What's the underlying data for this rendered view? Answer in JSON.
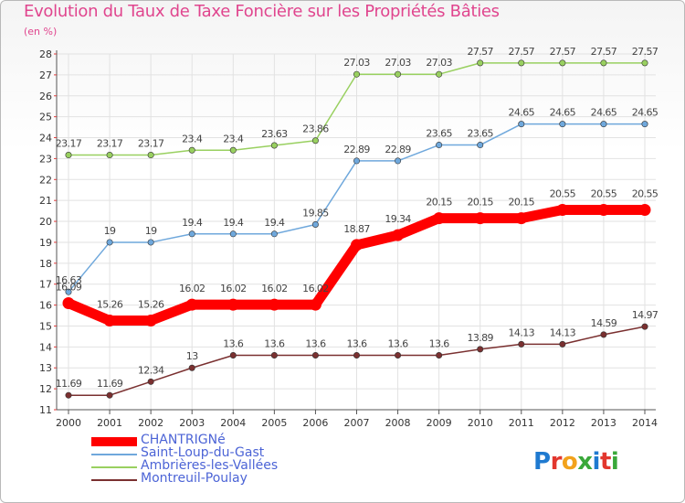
{
  "header": {
    "title": "Evolution du Taux de Taxe Foncière sur les Propriétés Bâties",
    "subtitle": "(en %)"
  },
  "logo": {
    "text": "Proxiti",
    "colors": [
      "#1f7ad0",
      "#e2372e",
      "#f2a21c",
      "#3aa83a",
      "#1f7ad0",
      "#e2372e",
      "#3aa83a"
    ]
  },
  "chart_data": {
    "type": "line",
    "title": "Evolution du Taux de Taxe Foncière sur les Propriétés Bâties",
    "ylabel": "(en %)",
    "xlabel": "",
    "x": [
      "2000",
      "2001",
      "2002",
      "2003",
      "2004",
      "2005",
      "2006",
      "2007",
      "2008",
      "2009",
      "2010",
      "2011",
      "2012",
      "2013",
      "2014"
    ],
    "ylim": [
      11,
      28
    ],
    "yticks": [
      11,
      12,
      13,
      14,
      15,
      16,
      17,
      18,
      19,
      20,
      21,
      22,
      23,
      24,
      25,
      26,
      27,
      28
    ],
    "grid": true,
    "legend_position": "bottom-left",
    "series": [
      {
        "name": "CHANTRIGNé",
        "color": "#ff0000",
        "values": [
          16.09,
          15.26,
          15.26,
          16.02,
          16.02,
          16.02,
          16.02,
          18.87,
          19.34,
          20.15,
          20.15,
          20.15,
          20.55,
          20.55,
          20.55
        ],
        "labels": [
          "16.09",
          "15.26",
          "15.26",
          "16.02",
          "16.02",
          "16.02",
          "16.02",
          "18.87",
          "19.34",
          "20.15",
          "20.15",
          "20.15",
          "20.55",
          "20.55",
          "20.55"
        ]
      },
      {
        "name": "Saint-Loup-du-Gast",
        "color": "#6fa8dc",
        "values": [
          16.63,
          19,
          19,
          19.4,
          19.4,
          19.4,
          19.85,
          22.89,
          22.89,
          23.65,
          23.65,
          24.65,
          24.65,
          24.65,
          24.65
        ],
        "labels": [
          "16.63",
          "19",
          "19",
          "19.4",
          "19.4",
          "19.4",
          "19.85",
          "22.89",
          "22.89",
          "23.65",
          "23.65",
          "24.65",
          "24.65",
          "24.65",
          "24.65"
        ]
      },
      {
        "name": "Ambrières-les-Vallées",
        "color": "#99d060",
        "values": [
          23.17,
          23.17,
          23.17,
          23.4,
          23.4,
          23.63,
          23.86,
          27.03,
          27.03,
          27.03,
          27.57,
          27.57,
          27.57,
          27.57,
          27.57
        ],
        "labels": [
          "23.17",
          "23.17",
          "23.17",
          "23.4",
          "23.4",
          "23.63",
          "23.86",
          "27.03",
          "27.03",
          "27.03",
          "27.57",
          "27.57",
          "27.57",
          "27.57",
          "27.57"
        ]
      },
      {
        "name": "Montreuil-Poulay",
        "color": "#7a3030",
        "values": [
          11.69,
          11.69,
          12.34,
          13,
          13.6,
          13.6,
          13.6,
          13.6,
          13.6,
          13.6,
          13.89,
          14.13,
          14.13,
          14.59,
          14.97
        ],
        "labels": [
          "11.69",
          "11.69",
          "12.34",
          "13",
          "13.6",
          "13.6",
          "13.6",
          "13.6",
          "13.6",
          "13.6",
          "13.89",
          "14.13",
          "14.13",
          "14.59",
          "14.97"
        ]
      }
    ]
  }
}
